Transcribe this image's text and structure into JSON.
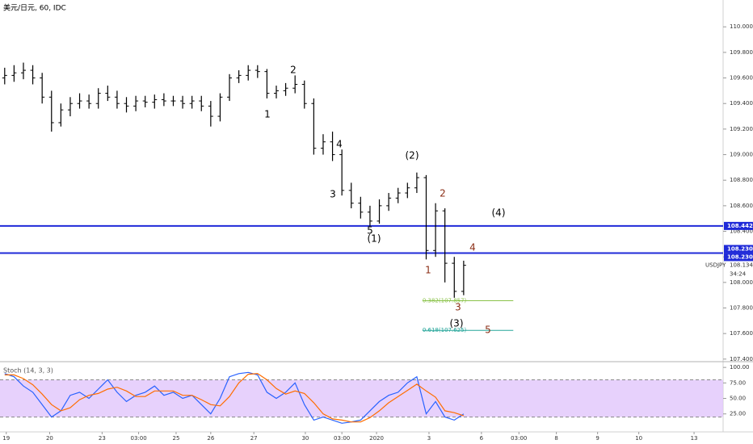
{
  "chart_data": {
    "type": "ohlc",
    "title": "美元/日元, 60, IDC",
    "color": "#000000",
    "xticks": [
      {
        "value": 0.17,
        "label": "19"
      },
      {
        "value": 4.8,
        "label": "20"
      },
      {
        "value": 10.4,
        "label": "23"
      },
      {
        "value": 14.3,
        "label": "03:00"
      },
      {
        "value": 18.3,
        "label": "25"
      },
      {
        "value": 22,
        "label": "26"
      },
      {
        "value": 26.6,
        "label": "27"
      },
      {
        "value": 32.1,
        "label": "30"
      },
      {
        "value": 36,
        "label": "03:00"
      },
      {
        "value": 39.7,
        "label": "2020"
      },
      {
        "value": 45.3,
        "label": "3"
      },
      {
        "value": 50.9,
        "label": "6"
      },
      {
        "value": 54.9,
        "label": "03:00"
      },
      {
        "value": 58.9,
        "label": "8"
      },
      {
        "value": 63.3,
        "label": "9"
      },
      {
        "value": 67.7,
        "label": "10"
      },
      {
        "value": 73.6,
        "label": "13"
      }
    ],
    "xlim": [
      -0.5,
      76.7
    ],
    "ylim": [
      107.38,
      110.21
    ],
    "yticks": [
      {
        "value": 107.4,
        "label": "107.400"
      },
      {
        "value": 107.6,
        "label": "107.600"
      },
      {
        "value": 107.8,
        "label": "107.800"
      },
      {
        "value": 108.0,
        "label": "108.000"
      },
      {
        "value": 108.2,
        "label": "108.200"
      },
      {
        "value": 108.4,
        "label": "108.400"
      },
      {
        "value": 108.6,
        "label": "108.600"
      },
      {
        "value": 108.8,
        "label": "108.800"
      },
      {
        "value": 109.0,
        "label": "109.000"
      },
      {
        "value": 109.2,
        "label": "109.200"
      },
      {
        "value": 109.4,
        "label": "109.400"
      },
      {
        "value": 109.6,
        "label": "109.600"
      },
      {
        "value": 109.8,
        "label": "109.800"
      },
      {
        "value": 110.0,
        "label": "110.000"
      }
    ],
    "open": [
      109.6,
      109.62,
      109.64,
      109.66,
      109.6,
      109.45,
      109.25,
      109.35,
      109.4,
      109.42,
      109.4,
      109.48,
      109.45,
      109.4,
      109.38,
      109.42,
      109.41,
      109.43,
      109.42,
      109.42,
      109.4,
      109.42,
      109.38,
      109.3,
      109.45,
      109.6,
      109.62,
      109.66,
      109.65,
      109.48,
      109.5,
      109.52,
      109.55,
      109.4,
      109.05,
      109.1,
      109.0,
      108.72,
      108.62,
      108.55,
      108.48,
      108.6,
      108.66,
      108.7,
      108.74,
      108.82,
      108.25,
      108.56,
      108.15,
      107.93
    ],
    "high": [
      109.68,
      109.7,
      109.72,
      109.7,
      109.64,
      109.5,
      109.4,
      109.45,
      109.48,
      109.47,
      109.52,
      109.54,
      109.5,
      109.45,
      109.46,
      109.46,
      109.47,
      109.48,
      109.46,
      109.46,
      109.46,
      109.46,
      109.42,
      109.48,
      109.63,
      109.66,
      109.7,
      109.7,
      109.67,
      109.54,
      109.56,
      109.62,
      109.58,
      109.44,
      109.16,
      109.18,
      109.04,
      108.78,
      108.67,
      108.6,
      108.65,
      108.7,
      108.74,
      108.78,
      108.86,
      108.84,
      108.62,
      108.58,
      108.2,
      108.17
    ],
    "low": [
      109.55,
      109.57,
      109.59,
      109.55,
      109.4,
      109.18,
      109.22,
      109.3,
      109.36,
      109.36,
      109.36,
      109.42,
      109.36,
      109.33,
      109.34,
      109.37,
      109.36,
      109.38,
      109.38,
      109.36,
      109.36,
      109.34,
      109.22,
      109.26,
      109.42,
      109.56,
      109.58,
      109.6,
      109.44,
      109.44,
      109.46,
      109.48,
      109.36,
      109.0,
      109.0,
      108.95,
      108.68,
      108.58,
      108.5,
      108.44,
      108.46,
      108.56,
      108.62,
      108.66,
      108.7,
      108.18,
      108.2,
      108.0,
      107.88,
      107.9
    ],
    "close": [
      109.62,
      109.64,
      109.66,
      109.6,
      109.45,
      109.25,
      109.35,
      109.4,
      109.42,
      109.4,
      109.48,
      109.45,
      109.4,
      109.38,
      109.42,
      109.41,
      109.43,
      109.42,
      109.42,
      109.4,
      109.42,
      109.38,
      109.3,
      109.45,
      109.6,
      109.62,
      109.66,
      109.65,
      109.48,
      109.5,
      109.52,
      109.55,
      109.4,
      109.05,
      109.1,
      109.0,
      108.72,
      108.62,
      108.55,
      108.48,
      108.6,
      108.66,
      108.7,
      108.74,
      108.82,
      108.25,
      108.56,
      108.15,
      107.93,
      108.134
    ],
    "symbol": "USDJPY",
    "last_price": 108.134,
    "countdown": "34:24",
    "hlines": [
      {
        "value": 108.442,
        "labels": [
          "108.442"
        ],
        "color": "#1f2ad8"
      },
      {
        "value": 108.23,
        "labels": [
          "108.230",
          "108.230"
        ],
        "color": "#1f2ad8"
      }
    ],
    "fib_levels": [
      {
        "label": "0.382(107.857)",
        "value": 107.857,
        "color": "#8bc34a"
      },
      {
        "label": "0.618(107.625)",
        "value": 107.625,
        "color": "#26a69a"
      }
    ],
    "annotations": [
      {
        "text": "1",
        "color": "#000000"
      },
      {
        "text": "2",
        "color": "#000000"
      },
      {
        "text": "3",
        "color": "#000000"
      },
      {
        "text": "4",
        "color": "#000000"
      },
      {
        "text": "5",
        "color": "#000000"
      },
      {
        "text": "(1)",
        "color": "#000000"
      },
      {
        "text": "(2)",
        "color": "#000000"
      },
      {
        "text": "(3)",
        "color": "#000000"
      },
      {
        "text": "(4)",
        "color": "#000000"
      },
      {
        "text": "2",
        "color": "#8b2e16"
      },
      {
        "text": "1",
        "color": "#8b2e16"
      },
      {
        "text": "3",
        "color": "#8b2e16"
      },
      {
        "text": "4",
        "color": "#8b2e16"
      },
      {
        "text": "5",
        "color": "#8b2e16"
      }
    ],
    "indicator": {
      "title": "Stoch (14, 3, 3)",
      "ylim": [
        -4,
        108
      ],
      "bands": [
        20,
        80
      ],
      "band_color": "#e1c6fb",
      "yticks": [
        {
          "value": 25,
          "label": "25.00"
        },
        {
          "value": 50,
          "label": "50.00"
        },
        {
          "value": 75,
          "label": "75.00"
        },
        {
          "value": 100,
          "label": "100.00"
        }
      ],
      "series": [
        {
          "name": "%K",
          "color": "#2962ff",
          "values": [
            90,
            85,
            70,
            60,
            40,
            20,
            30,
            55,
            60,
            50,
            65,
            80,
            60,
            45,
            55,
            60,
            70,
            55,
            60,
            50,
            55,
            40,
            25,
            50,
            85,
            90,
            92,
            88,
            60,
            50,
            60,
            75,
            40,
            15,
            20,
            15,
            10,
            12,
            15,
            30,
            45,
            55,
            60,
            75,
            85,
            25,
            45,
            20,
            15,
            25
          ]
        },
        {
          "name": "%D",
          "color": "#ff6d00",
          "values": [
            88,
            88,
            82,
            72,
            57,
            40,
            30,
            35,
            48,
            55,
            58,
            65,
            68,
            62,
            53,
            53,
            62,
            62,
            62,
            55,
            55,
            48,
            40,
            38,
            53,
            75,
            89,
            90,
            80,
            66,
            57,
            62,
            58,
            43,
            25,
            17,
            15,
            12,
            12,
            19,
            30,
            43,
            53,
            63,
            73,
            62,
            52,
            30,
            27,
            22
          ]
        }
      ]
    }
  }
}
